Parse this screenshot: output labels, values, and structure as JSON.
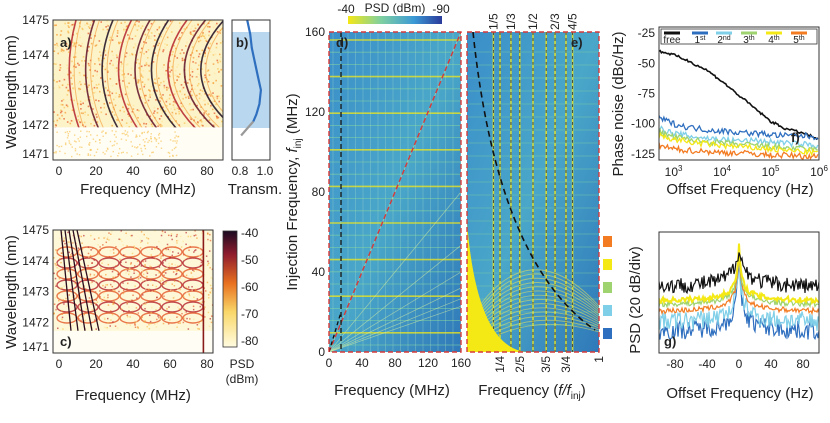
{
  "chart_data": [
    {
      "panel": "a",
      "type": "heatmap",
      "xlabel": "Frequency (MHz)",
      "ylabel": "Wavelength (nm)",
      "xticks": [
        "0",
        "20",
        "40",
        "60",
        "80"
      ],
      "yticks": [
        "1471",
        "1472",
        "1473",
        "1474",
        "1475"
      ],
      "xlim": [
        0,
        90
      ],
      "ylim": [
        1471,
        1475
      ],
      "colormap": "hot",
      "label": "a)"
    },
    {
      "panel": "b",
      "type": "line",
      "xlabel": "Transm.",
      "xticks": [
        "0.8",
        "1.0"
      ],
      "label": "b)",
      "x": [
        0.9,
        0.92,
        0.93,
        0.95,
        0.97,
        0.99,
        0.98,
        0.96,
        0.94
      ],
      "y": [
        1475,
        1474.6,
        1474.2,
        1473.8,
        1473.4,
        1473,
        1472.6,
        1472.3,
        1472.1
      ]
    },
    {
      "panel": "c",
      "type": "heatmap",
      "xlabel": "Frequency (MHz)",
      "ylabel": "Wavelength (nm)",
      "xticks": [
        "0",
        "20",
        "40",
        "60",
        "80"
      ],
      "yticks": [
        "1471",
        "1472",
        "1473",
        "1474",
        "1475"
      ],
      "label": "c)",
      "colorbar": {
        "title": "PSD",
        "unit": "(dBm)",
        "ticks": [
          "-40",
          "-50",
          "-60",
          "-70",
          "-80"
        ]
      }
    },
    {
      "panel": "d",
      "type": "heatmap",
      "xlabel": "Frequency (MHz)",
      "ylabel": "Injection Frequency, ",
      "ylabel_sym": "f",
      "ylabel_sub": "inj",
      "ylabel_unit": " (MHz)",
      "xticks": [
        "0",
        "40",
        "80",
        "120",
        "160"
      ],
      "yticks": [
        "0",
        "40",
        "80",
        "120",
        "160"
      ],
      "label": "d)",
      "colorbar": {
        "title": "PSD (dBm)",
        "ticks": [
          "-40",
          "-90"
        ]
      }
    },
    {
      "panel": "e",
      "type": "heatmap",
      "xlabel_pre": "Frequency (",
      "xlabel_sym": "f/f",
      "xlabel_sub": "inj",
      "xlabel_post": ")",
      "label": "e)",
      "xticks_bottom": [
        "1/4",
        "2/5",
        "3/5",
        "3/4",
        "1"
      ],
      "xticks_top": [
        "1/5",
        "1/3",
        "1/2",
        "2/3",
        "4/5"
      ],
      "legend_colors": [
        "#f37c23",
        "#f4e815",
        "#9ed36f",
        "#7fcfe8",
        "#2f6fbf"
      ]
    },
    {
      "panel": "f",
      "type": "line",
      "xlabel": "Offset Frequency (Hz)",
      "ylabel": "Phase noise  (dBc/Hz)",
      "xscale": "log",
      "xlim": [
        500,
        1000000
      ],
      "ylim": [
        -130,
        -20
      ],
      "yticks": [
        "-25",
        "-50",
        "-75",
        "-100",
        "-125"
      ],
      "label": "f)",
      "legend": [
        {
          "name": "free",
          "color": "#111111"
        },
        {
          "name": "1",
          "sup": "st",
          "color": "#2f6fbf"
        },
        {
          "name": "2",
          "sup": "nd",
          "color": "#7fcfe8"
        },
        {
          "name": "3",
          "sup": "th",
          "color": "#9ed36f"
        },
        {
          "name": "4",
          "sup": "th",
          "color": "#f4e815"
        },
        {
          "name": "5",
          "sup": "th",
          "color": "#f37c23"
        }
      ],
      "x": [
        500,
        1000,
        2000,
        5000,
        10000,
        20000,
        50000,
        100000,
        200000,
        500000,
        1000000
      ],
      "series": [
        {
          "name": "free",
          "values": [
            -40,
            -43,
            -48,
            -56,
            -65,
            -75,
            -88,
            -98,
            -104,
            -108,
            -113
          ]
        },
        {
          "name": "1st",
          "values": [
            -95,
            -100,
            -103,
            -105,
            -106,
            -107,
            -108,
            -109,
            -110,
            -110,
            -111
          ]
        },
        {
          "name": "2nd",
          "values": [
            -104,
            -108,
            -110,
            -112,
            -113,
            -114,
            -114,
            -115,
            -116,
            -117,
            -118
          ]
        },
        {
          "name": "3rd",
          "values": [
            -107,
            -111,
            -113,
            -115,
            -116,
            -117,
            -118,
            -119,
            -120,
            -121,
            -122
          ]
        },
        {
          "name": "4th",
          "values": [
            -110,
            -113,
            -115,
            -117,
            -118,
            -119,
            -120,
            -121,
            -122,
            -123,
            -124
          ]
        },
        {
          "name": "5th",
          "values": [
            -118,
            -121,
            -122,
            -123,
            -124,
            -124,
            -125,
            -126,
            -126,
            -127,
            -127
          ]
        }
      ]
    },
    {
      "panel": "g",
      "type": "line",
      "xlabel": "Offset Frequency (Hz)",
      "ylabel": "PSD (20 dB/div)",
      "xticks": [
        "-80",
        "-40",
        "0",
        "40",
        "80"
      ],
      "xlim": [
        -100,
        100
      ],
      "label": "g)",
      "series": [
        {
          "name": "free",
          "color": "#111111",
          "peak": -30,
          "floor": -62
        },
        {
          "name": "4th",
          "color": "#f4e815",
          "peak": -30,
          "floor": -72
        },
        {
          "name": "green",
          "color": "#9ed36f",
          "peak": -32,
          "floor": -75
        },
        {
          "name": "orange",
          "color": "#f37c23",
          "peak": -35,
          "floor": -80
        },
        {
          "name": "cyan",
          "color": "#7fcfe8",
          "peak": -38,
          "floor": -88
        },
        {
          "name": "blue",
          "color": "#2f6fbf",
          "peak": -40,
          "floor": -95
        }
      ]
    }
  ]
}
